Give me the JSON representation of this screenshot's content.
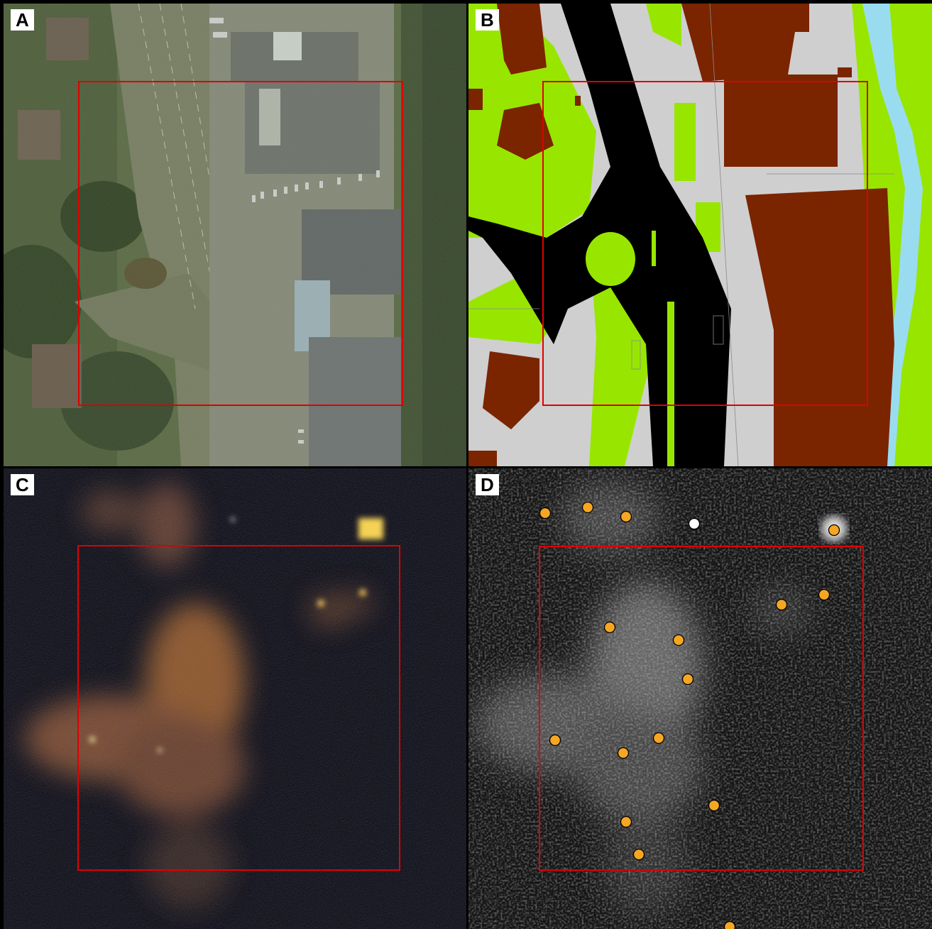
{
  "figure": {
    "panels": [
      {
        "label": "A",
        "kind": "aerial-photo"
      },
      {
        "label": "B",
        "kind": "land-cover-map"
      },
      {
        "label": "C",
        "kind": "night-light-color-image"
      },
      {
        "label": "D",
        "kind": "night-light-grayscale-with-points"
      }
    ]
  },
  "colors": {
    "roi_outline": "#e00000",
    "building": "#7b2400",
    "road": "#000000",
    "paved": "#cfcfcf",
    "vegetation": "#98e600",
    "water": "#99dcf0",
    "light_point": "#f5a623",
    "light_point_white": "#ffffff"
  }
}
